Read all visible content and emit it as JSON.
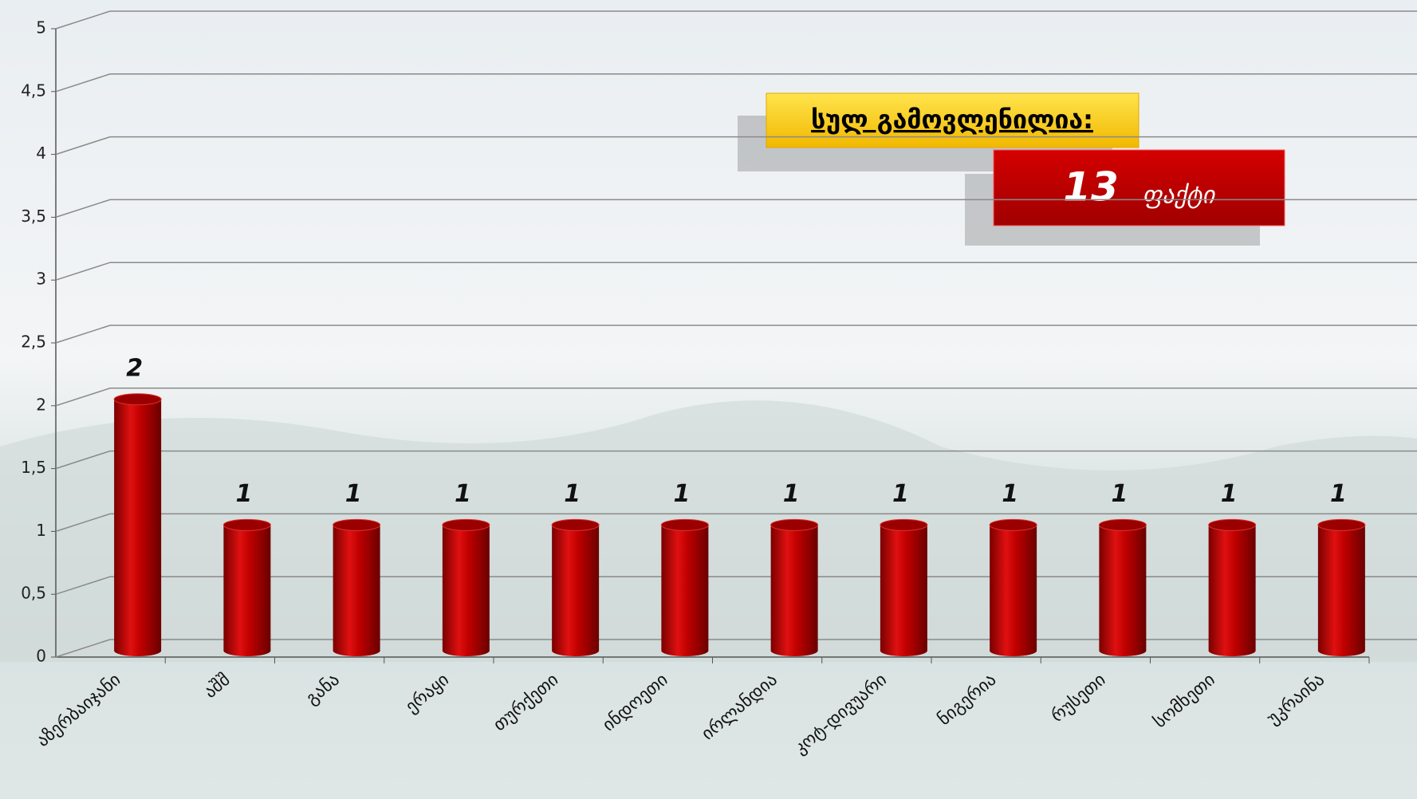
{
  "chart_data": {
    "type": "bar",
    "categories": [
      "აზერბაიჯანი",
      "აშშ",
      "განა",
      "ერაყი",
      "თურქეთი",
      "ინდოეთი",
      "ირლანდია",
      "კოტ-დივუარი",
      "ნიგერია",
      "რუსეთი",
      "სომხეთი",
      "უკრაინა"
    ],
    "values": [
      2,
      1,
      1,
      1,
      1,
      1,
      1,
      1,
      1,
      1,
      1,
      1
    ],
    "color": "#c00000",
    "ylim": [
      0,
      5
    ],
    "yticks": [
      0,
      {
        "value": 0.5,
        "label": "0,5"
      },
      1,
      {
        "value": 1.5,
        "label": "1,5"
      },
      2,
      {
        "value": 2.5,
        "label": "2,5"
      },
      3,
      {
        "value": 3.5,
        "label": "3,5"
      },
      4,
      {
        "value": 4.5,
        "label": "4,5"
      },
      5
    ],
    "grid": true,
    "total": {
      "label": "სულ გამოვლენილია:",
      "value": 13,
      "unit": "ფაქტი"
    }
  }
}
